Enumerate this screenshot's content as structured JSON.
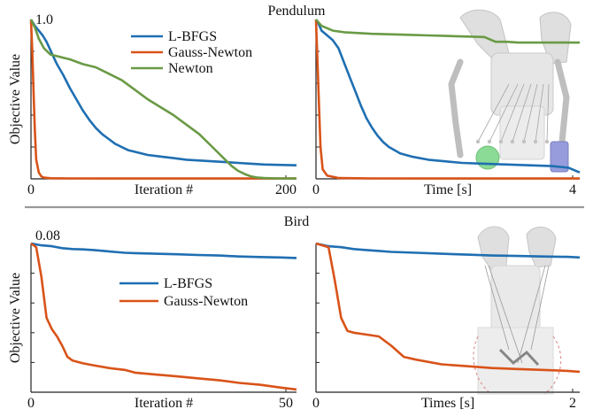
{
  "sections": {
    "top_title": "Pendulum",
    "bottom_title": "Bird"
  },
  "colors": {
    "lbfgs": "#1f6fb2",
    "gauss_newton": "#d95319",
    "newton": "#6a9a45"
  },
  "chart_data": [
    {
      "type": "line",
      "panel": "pendulum-iterations",
      "ylabel": "Objective Value",
      "xlabel": "Iteration #",
      "x_ticks": [
        "0",
        "200"
      ],
      "y_top_label": "1.0",
      "xlim": [
        0,
        205
      ],
      "ylim": [
        0,
        1.0
      ],
      "legend": "top-center",
      "series": [
        {
          "name": "L-BFGS",
          "color_key": "lbfgs",
          "x": [
            0,
            3,
            6,
            9,
            12,
            16,
            20,
            25,
            30,
            35,
            40,
            45,
            50,
            55,
            60,
            65,
            70,
            75,
            80,
            90,
            100,
            110,
            120,
            130,
            140,
            150,
            160,
            170,
            180,
            190,
            205
          ],
          "y": [
            1.0,
            0.96,
            0.93,
            0.9,
            0.86,
            0.79,
            0.72,
            0.65,
            0.57,
            0.5,
            0.43,
            0.37,
            0.32,
            0.28,
            0.25,
            0.22,
            0.2,
            0.18,
            0.17,
            0.15,
            0.14,
            0.13,
            0.12,
            0.115,
            0.11,
            0.105,
            0.1,
            0.095,
            0.09,
            0.088,
            0.085
          ]
        },
        {
          "name": "Gauss-Newton",
          "color_key": "gauss_newton",
          "x": [
            0,
            1,
            2,
            3,
            4,
            6,
            8,
            10,
            15,
            30,
            60,
            100,
            150,
            205
          ],
          "y": [
            1.0,
            0.8,
            0.55,
            0.3,
            0.12,
            0.04,
            0.015,
            0.008,
            0.004,
            0.003,
            0.002,
            0.002,
            0.002,
            0.002
          ]
        },
        {
          "name": "Newton",
          "color_key": "newton",
          "x": [
            0,
            3,
            6,
            10,
            15,
            20,
            25,
            30,
            40,
            50,
            60,
            70,
            80,
            90,
            100,
            110,
            120,
            130,
            140,
            150,
            155,
            160,
            165,
            170,
            175,
            180,
            190,
            205
          ],
          "y": [
            1.0,
            0.95,
            0.88,
            0.82,
            0.78,
            0.77,
            0.76,
            0.75,
            0.72,
            0.7,
            0.66,
            0.62,
            0.56,
            0.5,
            0.45,
            0.4,
            0.34,
            0.28,
            0.2,
            0.12,
            0.08,
            0.05,
            0.03,
            0.015,
            0.008,
            0.005,
            0.003,
            0.002
          ]
        }
      ]
    },
    {
      "type": "line",
      "panel": "pendulum-time",
      "xlabel": "Time [s]",
      "x_ticks": [
        "0",
        "4"
      ],
      "xlim": [
        0,
        4.7
      ],
      "ylim": [
        0,
        1.0
      ],
      "series": [
        {
          "name": "L-BFGS",
          "color_key": "lbfgs",
          "x": [
            0,
            0.05,
            0.1,
            0.2,
            0.3,
            0.4,
            0.5,
            0.6,
            0.7,
            0.8,
            0.9,
            1.0,
            1.1,
            1.2,
            1.3,
            1.5,
            1.7,
            2.0,
            2.3,
            2.6,
            3.0,
            3.4,
            3.8,
            4.2,
            4.5,
            4.7
          ],
          "y": [
            1.0,
            0.97,
            0.93,
            0.9,
            0.87,
            0.82,
            0.73,
            0.64,
            0.55,
            0.46,
            0.38,
            0.32,
            0.27,
            0.23,
            0.2,
            0.16,
            0.14,
            0.12,
            0.11,
            0.1,
            0.095,
            0.09,
            0.085,
            0.08,
            0.07,
            0.04
          ]
        },
        {
          "name": "Gauss-Newton",
          "color_key": "gauss_newton",
          "x": [
            0,
            0.02,
            0.05,
            0.08,
            0.12,
            0.2,
            0.4,
            1,
            2,
            3,
            4,
            4.7
          ],
          "y": [
            1.0,
            0.8,
            0.5,
            0.2,
            0.06,
            0.02,
            0.005,
            0.003,
            0.002,
            0.002,
            0.002,
            0.002
          ]
        },
        {
          "name": "Newton",
          "color_key": "newton",
          "x": [
            0,
            0.1,
            0.3,
            0.5,
            1.0,
            1.5,
            2.0,
            2.5,
            3.0,
            3.2,
            3.4,
            3.6,
            4.0,
            4.5,
            4.7
          ],
          "y": [
            1.0,
            0.96,
            0.93,
            0.92,
            0.91,
            0.905,
            0.9,
            0.895,
            0.89,
            0.86,
            0.86,
            0.855,
            0.855,
            0.855,
            0.855
          ]
        }
      ]
    },
    {
      "type": "line",
      "panel": "bird-iterations",
      "ylabel": "Objective Value",
      "xlabel": "Iteration #",
      "x_ticks": [
        "0",
        "50"
      ],
      "y_top_label": "0.08",
      "xlim": [
        0,
        51
      ],
      "ylim": [
        0,
        0.08
      ],
      "legend": "center",
      "series": [
        {
          "name": "L-BFGS",
          "color_key": "lbfgs",
          "x": [
            0,
            2,
            4,
            6,
            8,
            10,
            12,
            14,
            16,
            18,
            20,
            24,
            28,
            32,
            36,
            40,
            44,
            48,
            51
          ],
          "y": [
            0.08,
            0.079,
            0.0785,
            0.0775,
            0.077,
            0.0768,
            0.0765,
            0.076,
            0.0755,
            0.075,
            0.0748,
            0.0745,
            0.0742,
            0.0738,
            0.0735,
            0.073,
            0.0727,
            0.0725,
            0.0722
          ]
        },
        {
          "name": "Gauss-Newton",
          "color_key": "gauss_newton",
          "x": [
            0,
            1,
            2,
            3,
            4,
            5,
            6,
            7,
            8,
            10,
            12,
            15,
            18,
            20,
            24,
            28,
            32,
            36,
            40,
            44,
            48,
            51
          ],
          "y": [
            0.08,
            0.078,
            0.062,
            0.04,
            0.034,
            0.03,
            0.025,
            0.019,
            0.017,
            0.0155,
            0.0145,
            0.013,
            0.012,
            0.0105,
            0.0095,
            0.0085,
            0.0075,
            0.0065,
            0.005,
            0.004,
            0.0025,
            0.0015
          ]
        }
      ]
    },
    {
      "type": "line",
      "panel": "bird-time",
      "xlabel": "Times [s]",
      "x_ticks": [
        "0",
        "2"
      ],
      "xlim": [
        0,
        2.1
      ],
      "ylim": [
        0,
        0.08
      ],
      "series": [
        {
          "name": "L-BFGS",
          "color_key": "lbfgs",
          "x": [
            0,
            0.1,
            0.2,
            0.3,
            0.4,
            0.5,
            0.6,
            0.8,
            1.0,
            1.2,
            1.4,
            1.6,
            1.8,
            2.0,
            2.1
          ],
          "y": [
            0.08,
            0.0785,
            0.078,
            0.077,
            0.0765,
            0.076,
            0.0755,
            0.075,
            0.0745,
            0.074,
            0.0735,
            0.0733,
            0.073,
            0.0728,
            0.0725
          ]
        },
        {
          "name": "Gauss-Newton",
          "color_key": "gauss_newton",
          "x": [
            0,
            0.1,
            0.15,
            0.2,
            0.25,
            0.3,
            0.4,
            0.5,
            0.6,
            0.7,
            0.8,
            1.0,
            1.2,
            1.4,
            1.6,
            1.8,
            2.0,
            2.1
          ],
          "y": [
            0.08,
            0.078,
            0.06,
            0.04,
            0.033,
            0.032,
            0.031,
            0.03,
            0.025,
            0.019,
            0.0175,
            0.015,
            0.014,
            0.013,
            0.0125,
            0.012,
            0.0115,
            0.011
          ]
        }
      ]
    }
  ]
}
